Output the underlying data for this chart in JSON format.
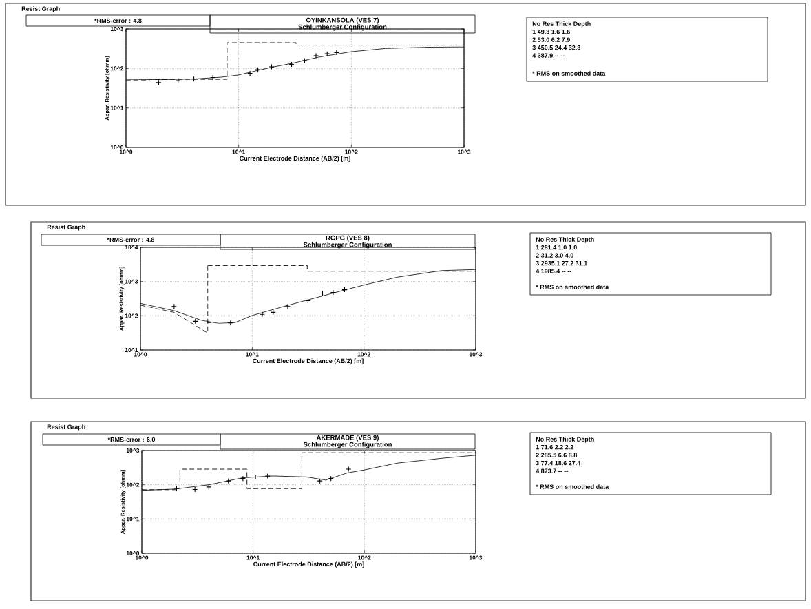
{
  "chart_data": [
    {
      "type": "scatter",
      "title": "OYINKANSOLA (VES 7)",
      "subtitle": "Schlumberger Configuration",
      "xlabel": "Current Electrode Distance (AB/2) [m]",
      "ylabel": "Appar. Resistivity [ohmm]",
      "log": "xy",
      "grid": true,
      "xlim": [
        1,
        1000
      ],
      "ylim": [
        1,
        1000
      ],
      "xticks": [
        {
          "value": 1,
          "label": "10^0"
        },
        {
          "value": 10,
          "label": "10^1"
        },
        {
          "value": 100,
          "label": "10^2"
        },
        {
          "value": 1000,
          "label": "10^3"
        }
      ],
      "yticks": [
        {
          "value": 1,
          "label": "10^0"
        },
        {
          "value": 10,
          "label": "10^1"
        },
        {
          "value": 100,
          "label": "10^2"
        },
        {
          "value": 1000,
          "label": "10^3"
        }
      ],
      "annotations": [
        "Resist Graph",
        "*RMS-error :  4.8",
        "No   Res   Thick   Depth",
        "1   49.3   1.6   1.6",
        "2   53.0   6.2   7.9",
        "3   450.5   24.4   32.3",
        "4   387.9   --   --",
        "* RMS on smoothed data"
      ],
      "series": [
        {
          "marker": "cross",
          "color": "#000000",
          "x": [
            1.95,
            2.9,
            4.0,
            5.9,
            12.6,
            14.8,
            19.6,
            29.5,
            38.5,
            48.6,
            61,
            74
          ],
          "values": [
            44,
            49,
            54,
            59,
            75,
            93,
            110,
            126,
            158,
            208,
            234,
            251
          ]
        },
        {
          "type": "line",
          "line_style": "solid",
          "color": "#000000",
          "x": [
            1,
            2,
            4,
            7,
            10,
            15,
            20,
            30,
            50,
            100,
            200,
            500,
            1000
          ],
          "values": [
            53,
            52,
            54,
            60,
            68,
            90,
            108,
            135,
            190,
            265,
            320,
            345,
            350
          ]
        },
        {
          "type": "step",
          "line_style": "dashed",
          "color": "#000000",
          "x": [
            1,
            1.6,
            7.9,
            32.3,
            1000
          ],
          "values": [
            49.3,
            53.0,
            450.5,
            387.9,
            387.9
          ]
        }
      ]
    },
    {
      "type": "scatter",
      "title": "RGPG (VES 8)",
      "subtitle": "Schlumberger Configuration",
      "xlabel": "Current Electrode Distance (AB/2) [m]",
      "ylabel": "Appar. Resistivity [ohmm]",
      "log": "xy",
      "grid": true,
      "xlim": [
        1,
        1000
      ],
      "ylim": [
        10,
        10000
      ],
      "xticks": [
        {
          "value": 1,
          "label": "10^0"
        },
        {
          "value": 10,
          "label": "10^1"
        },
        {
          "value": 100,
          "label": "10^2"
        },
        {
          "value": 1000,
          "label": "10^3"
        }
      ],
      "yticks": [
        {
          "value": 10,
          "label": "10^1"
        },
        {
          "value": 100,
          "label": "10^2"
        },
        {
          "value": 1000,
          "label": "10^3"
        },
        {
          "value": 10000,
          "label": "10^4"
        }
      ],
      "annotations": [
        "Resist Graph",
        "*RMS-error :  4.8",
        "No   Res   Thick   Depth",
        "1   281.4   1.0   1.0",
        "2   31.2   3.0   4.0",
        "3   2935.1   27.2   31.1",
        "4   1985.4   --   --",
        "* RMS on smoothed data"
      ],
      "series": [
        {
          "marker": "cross",
          "color": "#000000",
          "x": [
            2.0,
            3.1,
            4.1,
            6.4,
            12.3,
            15.4,
            20.8,
            31.6,
            42.6,
            53,
            67
          ],
          "values": [
            187,
            69,
            63,
            62,
            110,
            126,
            187,
            275,
            457,
            480,
            575
          ]
        },
        {
          "type": "line",
          "line_style": "solid",
          "color": "#000000",
          "x": [
            1,
            2,
            3.5,
            5,
            7,
            10,
            20,
            50,
            100,
            200,
            500,
            1000
          ],
          "values": [
            230,
            141,
            74,
            60,
            63,
            102,
            195,
            437,
            794,
            1350,
            2090,
            2240
          ]
        },
        {
          "type": "line",
          "line_style": "dashed",
          "color": "#000000",
          "x": [
            1,
            2,
            4,
            4
          ],
          "values": [
            204,
            126,
            31.2,
            2935.1
          ]
        },
        {
          "type": "step",
          "line_style": "dashed",
          "color": "#000000",
          "x": [
            4,
            31.1,
            1000
          ],
          "values": [
            2935.1,
            1985.4,
            1985.4
          ]
        }
      ]
    },
    {
      "type": "scatter",
      "title": "AKERMADE (VES 9)",
      "subtitle": "Schlumberger Configuration",
      "xlabel": "Current Electrode Distance (AB/2) [m]",
      "ylabel": "Appar. Resistivity [ohmm]",
      "log": "xy",
      "grid": true,
      "xlim": [
        1,
        1000
      ],
      "ylim": [
        1,
        1000
      ],
      "xticks": [
        {
          "value": 1,
          "label": "10^0"
        },
        {
          "value": 10,
          "label": "10^1"
        },
        {
          "value": 100,
          "label": "10^2"
        },
        {
          "value": 1000,
          "label": "10^3"
        }
      ],
      "yticks": [
        {
          "value": 1,
          "label": "10^0"
        },
        {
          "value": 10,
          "label": "10^1"
        },
        {
          "value": 100,
          "label": "10^2"
        },
        {
          "value": 1000,
          "label": "10^3"
        }
      ],
      "annotations": [
        "Resist Graph",
        "*RMS-error :  6.0",
        "No   Res   Thick   Depth",
        "1   71.6   2.2   2.2",
        "2   285.5   6.6   8.8",
        "3   77.4   18.6   27.4",
        "4   873.7   --   --",
        "* RMS on smoothed data"
      ],
      "series": [
        {
          "marker": "cross",
          "color": "#000000",
          "x": [
            2.05,
            3.0,
            4.0,
            6.0,
            8.1,
            10.5,
            13.5,
            39.8,
            50,
            72
          ],
          "values": [
            78,
            73,
            86,
            129,
            152,
            168,
            180,
            129,
            152,
            285
          ]
        },
        {
          "type": "line",
          "line_style": "solid",
          "color": "#000000",
          "x": [
            1,
            2,
            4,
            8,
            15,
            30,
            45,
            70,
            100,
            200,
            500,
            1000
          ],
          "values": [
            69,
            75,
            100,
            159,
            180,
            169,
            137,
            221,
            272,
            432,
            595,
            730
          ]
        },
        {
          "type": "step",
          "line_style": "dashed",
          "color": "#000000",
          "x": [
            1,
            2.2,
            8.8,
            27.4,
            1000
          ],
          "values": [
            71.6,
            285.5,
            77.4,
            873.7,
            873.7
          ]
        }
      ]
    }
  ]
}
